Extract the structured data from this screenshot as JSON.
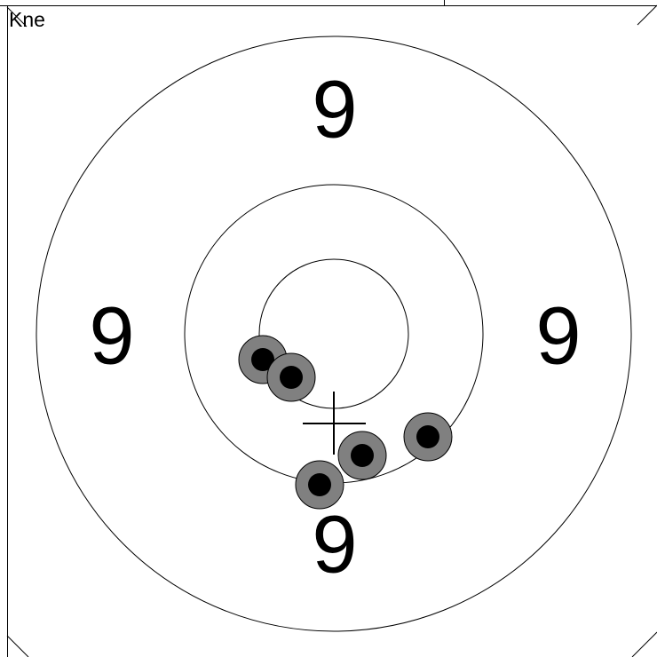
{
  "target": {
    "label": "Kne",
    "ring_numbers": [
      "9",
      "9",
      "9",
      "9"
    ]
  }
}
